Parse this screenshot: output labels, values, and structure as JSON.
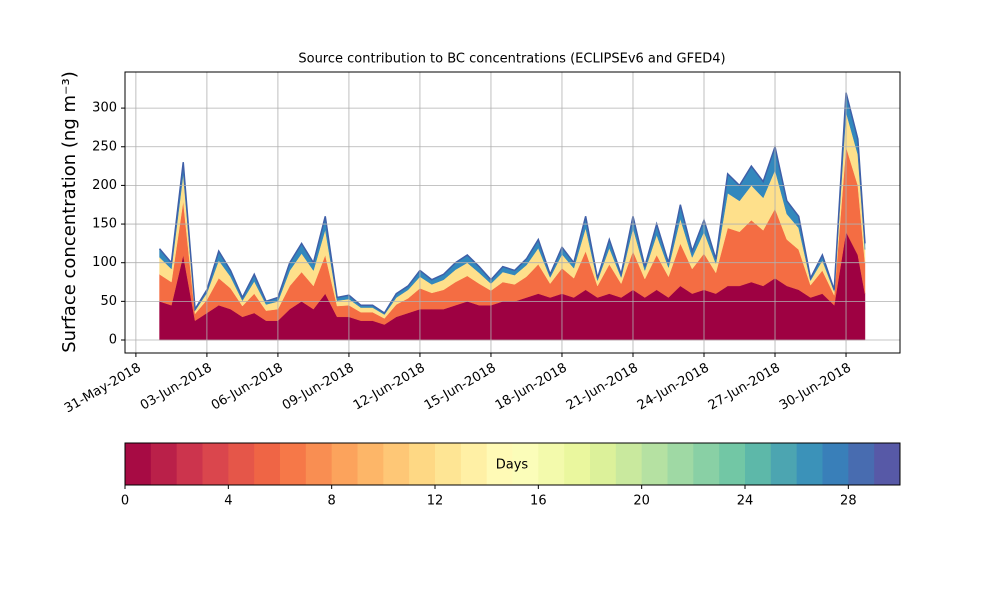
{
  "chart_data": {
    "type": "stackedarea",
    "title": "Source contribution to BC concentrations (ECLIPSEv6 and GFED4)",
    "y_label": "Surface concentration (ng m⁻³)",
    "x": [
      1,
      1.5,
      2,
      2.5,
      3,
      3.5,
      4,
      4.5,
      5,
      5.5,
      6,
      6.5,
      7,
      7.5,
      8,
      8.5,
      9,
      9.5,
      10,
      10.5,
      11,
      11.5,
      12,
      12.5,
      13,
      13.5,
      14,
      14.5,
      15,
      15.5,
      16,
      16.5,
      17,
      17.5,
      18,
      18.5,
      19,
      19.5,
      20,
      20.5,
      21,
      21.5,
      22,
      22.5,
      23,
      23.5,
      24,
      24.5,
      25,
      25.5,
      26,
      26.5,
      27,
      27.5,
      28,
      28.5,
      29,
      29.5,
      30,
      30.5,
      30.8
    ],
    "series": [
      {
        "color": "#9e0142",
        "values": [
          50,
          45,
          110,
          25,
          35,
          45,
          40,
          30,
          35,
          25,
          25,
          40,
          50,
          40,
          60,
          30,
          30,
          25,
          25,
          20,
          30,
          35,
          40,
          40,
          40,
          45,
          50,
          45,
          45,
          50,
          50,
          55,
          60,
          55,
          60,
          55,
          65,
          55,
          60,
          55,
          65,
          55,
          65,
          55,
          70,
          60,
          65,
          60,
          70,
          70,
          75,
          70,
          80,
          70,
          65,
          55,
          60,
          45,
          140,
          110,
          60
        ]
      },
      {
        "color": "#f46d43",
        "values": [
          35,
          30,
          70,
          9,
          17,
          35,
          27,
          14,
          25,
          13,
          15,
          30,
          38,
          30,
          50,
          14,
          15,
          11,
          11,
          8,
          16,
          19,
          27,
          21,
          25,
          30,
          33,
          28,
          19,
          25,
          22,
          27,
          38,
          18,
          33,
          25,
          50,
          15,
          38,
          18,
          50,
          24,
          45,
          27,
          55,
          32,
          47,
          27,
          75,
          70,
          80,
          72,
          90,
          60,
          52,
          16,
          30,
          13,
          110,
          90,
          40
        ]
      },
      {
        "color": "#fee08b",
        "values": [
          22,
          17,
          35,
          4,
          9,
          23,
          15,
          7,
          16,
          8,
          10,
          20,
          24,
          20,
          33,
          7,
          8,
          6,
          6,
          5,
          9,
          11,
          15,
          11,
          13,
          16,
          17,
          14,
          9,
          13,
          12,
          15,
          21,
          8,
          18,
          13,
          30,
          7,
          21,
          8,
          30,
          11,
          26,
          12,
          32,
          15,
          28,
          12,
          45,
          40,
          45,
          42,
          50,
          33,
          28,
          6,
          13,
          5,
          45,
          40,
          17
        ]
      },
      {
        "color": "#3288bd",
        "values": [
          11,
          8,
          15,
          2,
          4,
          12,
          8,
          4,
          9,
          4,
          5,
          10,
          13,
          10,
          17,
          4,
          5,
          3,
          3,
          2,
          5,
          5,
          8,
          6,
          7,
          9,
          10,
          8,
          5,
          7,
          6,
          8,
          11,
          4,
          9,
          7,
          15,
          3,
          11,
          4,
          15,
          5,
          14,
          6,
          18,
          8,
          15,
          6,
          25,
          20,
          25,
          21,
          30,
          17,
          15,
          3,
          7,
          2,
          25,
          20,
          8
        ]
      }
    ],
    "top_line_color": "#3f5fa8",
    "xlim": [
      -0.46,
      32.28
    ],
    "xticks": [
      {
        "value": 0,
        "label": "31-May-2018"
      },
      {
        "value": 3,
        "label": "03-Jun-2018"
      },
      {
        "value": 6,
        "label": "06-Jun-2018"
      },
      {
        "value": 9,
        "label": "09-Jun-2018"
      },
      {
        "value": 12,
        "label": "12-Jun-2018"
      },
      {
        "value": 15,
        "label": "15-Jun-2018"
      },
      {
        "value": 18,
        "label": "18-Jun-2018"
      },
      {
        "value": 21,
        "label": "21-Jun-2018"
      },
      {
        "value": 24,
        "label": "24-Jun-2018"
      },
      {
        "value": 27,
        "label": "27-Jun-2018"
      },
      {
        "value": 30,
        "label": "30-Jun-2018"
      }
    ],
    "ylim": [
      -16.8,
      346.7
    ],
    "yticks": [
      0,
      50,
      100,
      150,
      200,
      250,
      300
    ],
    "grid": true,
    "colorbar": {
      "label": "Days",
      "lim": [
        0,
        30
      ],
      "ticks": [
        0,
        4,
        8,
        12,
        16,
        20,
        24,
        28
      ],
      "steps": 30,
      "cmap": [
        "#9e0142",
        "#d53e4f",
        "#f46d43",
        "#fdae61",
        "#fee08b",
        "#ffffbf",
        "#e6f598",
        "#abdda4",
        "#66c2a5",
        "#3288bd",
        "#5e4fa2"
      ]
    }
  }
}
